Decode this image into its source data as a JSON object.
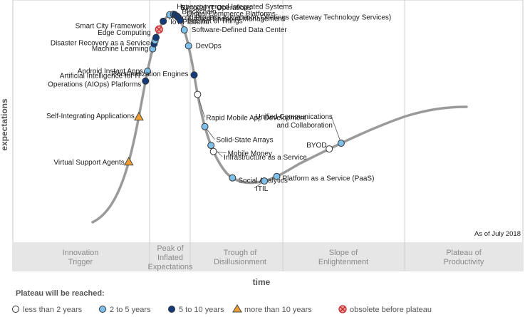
{
  "chart_data": {
    "type": "scatter",
    "subtype": "hype-cycle",
    "xlabel": "time",
    "ylabel": "expectations",
    "as_of": "As of July 2018",
    "phases": [
      {
        "name": "Innovation Trigger",
        "lines": [
          "Innovation",
          "Trigger"
        ]
      },
      {
        "name": "Peak of Inflated Expectations",
        "lines": [
          "Peak of",
          "Inflated",
          "Expectations"
        ]
      },
      {
        "name": "Trough of Disillusionment",
        "lines": [
          "Trough of",
          "Disillusionment"
        ]
      },
      {
        "name": "Slope of Enlightenment",
        "lines": [
          "Slope of",
          "Enlightenment"
        ]
      },
      {
        "name": "Plateau of Productivity",
        "lines": [
          "Plateau of",
          "Productivity"
        ]
      }
    ],
    "legend_title": "Plateau will be reached:",
    "categories": [
      {
        "key": "lt2",
        "label": "less than 2 years",
        "color": "#ffffff",
        "shape": "circle"
      },
      {
        "key": "2to5",
        "label": "2 to 5 years",
        "color": "#7ec0ea",
        "shape": "circle"
      },
      {
        "key": "5to10",
        "label": "5 to 10 years",
        "color": "#143c7a",
        "shape": "circle"
      },
      {
        "key": "gt10",
        "label": "more than 10 years",
        "color": "#f0a030",
        "shape": "triangle"
      },
      {
        "key": "obsolete",
        "label": "obsolete before plateau",
        "color": "#e8a0a0",
        "shape": "cross-circle"
      }
    ],
    "points": [
      {
        "label": "Virtual Support Agents",
        "cat": "gt10",
        "t": 0.11
      },
      {
        "label": "Self-Integrating Applications",
        "cat": "gt10",
        "t": 0.18
      },
      {
        "label": "Artificial Intelligence for IT Operations (AIOps) Platforms",
        "cat": "5to10",
        "t": 0.235
      },
      {
        "label": "Android Instant Apps",
        "cat": "2to5",
        "t": 0.25
      },
      {
        "label": "Machine Learning",
        "cat": "2to5",
        "t": 0.285
      },
      {
        "label": "Disaster Recovery as a Service",
        "cat": "5to10",
        "t": 0.293
      },
      {
        "label": "Edge Computing",
        "cat": "2to5",
        "t": 0.298
      },
      {
        "label": "Smart City Framework",
        "cat": "5to10",
        "t": 0.303
      },
      {
        "label": "Robotic Process Automation Offerings (Gateway Technology Services)",
        "cat": "obsolete",
        "t": 0.316
      },
      {
        "label": "IoT Platform",
        "cat": "5to10",
        "t": 0.33
      },
      {
        "label": "Hyperconverged Integrated Systems",
        "cat": "2to5",
        "t": 0.344
      },
      {
        "label": "Bimodal IT Operations",
        "cat": "2to5",
        "t": 0.35
      },
      {
        "label": "Blockchain",
        "cat": "5to10",
        "t": 0.352
      },
      {
        "label": "Digital Commerce Platforms",
        "cat": "5to10",
        "t": 0.356
      },
      {
        "label": "Unified Endpoint Management",
        "cat": "5to10",
        "t": 0.359
      },
      {
        "label": "Internet of Things",
        "cat": "5to10",
        "t": 0.364
      },
      {
        "label": "Software-Defined Data Center",
        "cat": "2to5",
        "t": 0.38
      },
      {
        "label": "DevOps",
        "cat": "2to5",
        "t": 0.405
      },
      {
        "label": "Personalization Engines",
        "cat": "5to10",
        "t": 0.45
      },
      {
        "label": "Rapid Mobile App Development",
        "cat": "lt2",
        "t": 0.48
      },
      {
        "label": "Solid-State Arrays",
        "cat": "2to5",
        "t": 0.53
      },
      {
        "label": "Infrastructure as a Service",
        "cat": "2to5",
        "t": 0.56
      },
      {
        "label": "Mobile Money",
        "cat": "lt2",
        "t": 0.57
      },
      {
        "label": "Social Analytics",
        "cat": "2to5",
        "t": 0.62
      },
      {
        "label": "ITIL",
        "cat": "2to5",
        "t": 0.67
      },
      {
        "label": "Platform as a Service (PaaS)",
        "cat": "2to5",
        "t": 0.69
      },
      {
        "label": "BYOD",
        "cat": "lt2",
        "t": 0.78
      },
      {
        "label": "Unified Communications and Collaboration",
        "cat": "2to5",
        "t": 0.8
      }
    ]
  }
}
